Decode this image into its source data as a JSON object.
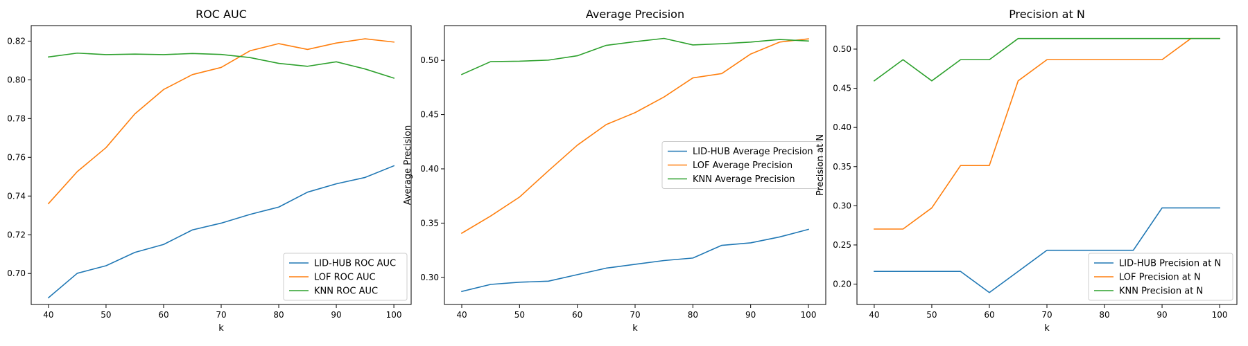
{
  "colors": {
    "LID-HUB": "#1f77b4",
    "LOF": "#ff7f0e",
    "KNN": "#2ca02c"
  },
  "chart_data": [
    {
      "type": "line",
      "title": "ROC AUC",
      "xlabel": "k",
      "ylabel": "ROC AUC",
      "x": [
        40,
        45,
        50,
        55,
        60,
        65,
        70,
        75,
        80,
        85,
        90,
        95,
        100
      ],
      "xlim": [
        37,
        103
      ],
      "ylim": [
        0.684,
        0.828
      ],
      "xticks": [
        40,
        50,
        60,
        70,
        80,
        90,
        100
      ],
      "yticks": [
        0.7,
        0.72,
        0.74,
        0.76,
        0.78,
        0.8,
        0.82
      ],
      "ytick_labels": [
        "0.70",
        "0.72",
        "0.74",
        "0.76",
        "0.78",
        "0.80",
        "0.82"
      ],
      "legend_position": "lower-right",
      "series": [
        {
          "name": "LID-HUB ROC AUC",
          "color": "#1f77b4",
          "values": [
            0.6875,
            0.7001,
            0.704,
            0.7109,
            0.715,
            0.7225,
            0.726,
            0.7305,
            0.7343,
            0.742,
            0.7463,
            0.7496,
            0.7556
          ]
        },
        {
          "name": "LOF ROC AUC",
          "color": "#ff7f0e",
          "values": [
            0.7361,
            0.7526,
            0.765,
            0.7824,
            0.795,
            0.8027,
            0.8064,
            0.815,
            0.8187,
            0.8157,
            0.819,
            0.8212,
            0.8195
          ]
        },
        {
          "name": "KNN ROC AUC",
          "color": "#2ca02c",
          "values": [
            0.8118,
            0.8138,
            0.813,
            0.8133,
            0.813,
            0.8136,
            0.8131,
            0.8115,
            0.8085,
            0.807,
            0.8093,
            0.8056,
            0.8009
          ]
        }
      ]
    },
    {
      "type": "line",
      "title": "Average Precision",
      "xlabel": "k",
      "ylabel": "Average Precision",
      "x": [
        40,
        45,
        50,
        55,
        60,
        65,
        70,
        75,
        80,
        85,
        90,
        95,
        100
      ],
      "xlim": [
        37,
        103
      ],
      "ylim": [
        0.275,
        0.532
      ],
      "xticks": [
        40,
        50,
        60,
        70,
        80,
        90,
        100
      ],
      "yticks": [
        0.3,
        0.35,
        0.4,
        0.45,
        0.5
      ],
      "ytick_labels": [
        "0.30",
        "0.35",
        "0.40",
        "0.45",
        "0.50"
      ],
      "legend_position": "center-right",
      "series": [
        {
          "name": "LID-HUB Average Precision",
          "color": "#1f77b4",
          "values": [
            0.287,
            0.2935,
            0.2955,
            0.2965,
            0.3025,
            0.3085,
            0.312,
            0.3155,
            0.3178,
            0.3295,
            0.3318,
            0.3372,
            0.3442
          ]
        },
        {
          "name": "LOF Average Precision",
          "color": "#ff7f0e",
          "values": [
            0.3407,
            0.3565,
            0.374,
            0.3982,
            0.4218,
            0.4408,
            0.4518,
            0.4662,
            0.4838,
            0.4878,
            0.5058,
            0.5168,
            0.5198
          ]
        },
        {
          "name": "KNN Average Precision",
          "color": "#2ca02c",
          "values": [
            0.487,
            0.4988,
            0.4992,
            0.5002,
            0.5042,
            0.5138,
            0.5172,
            0.5202,
            0.5142,
            0.5153,
            0.5168,
            0.5192,
            0.5178
          ]
        }
      ]
    },
    {
      "type": "line",
      "title": "Precision at N",
      "xlabel": "k",
      "ylabel": "Precision at N",
      "x": [
        40,
        45,
        50,
        55,
        60,
        65,
        70,
        75,
        80,
        85,
        90,
        95,
        100
      ],
      "xlim": [
        37,
        103
      ],
      "ylim": [
        0.174,
        0.53
      ],
      "xticks": [
        40,
        50,
        60,
        70,
        80,
        90,
        100
      ],
      "yticks": [
        0.2,
        0.25,
        0.3,
        0.35,
        0.4,
        0.45,
        0.5
      ],
      "ytick_labels": [
        "0.20",
        "0.25",
        "0.30",
        "0.35",
        "0.40",
        "0.45",
        "0.50"
      ],
      "legend_position": "lower-right",
      "series": [
        {
          "name": "LID-HUB Precision at N",
          "color": "#1f77b4",
          "values": [
            0.2162,
            0.2162,
            0.2162,
            0.2162,
            0.1892,
            0.2162,
            0.2432,
            0.2432,
            0.2432,
            0.2432,
            0.2973,
            0.2973,
            0.2973
          ]
        },
        {
          "name": "LOF Precision at N",
          "color": "#ff7f0e",
          "values": [
            0.2703,
            0.2703,
            0.2973,
            0.3514,
            0.3514,
            0.4595,
            0.4865,
            0.4865,
            0.4865,
            0.4865,
            0.4865,
            0.5135,
            0.5135
          ]
        },
        {
          "name": "KNN Precision at N",
          "color": "#2ca02c",
          "values": [
            0.4595,
            0.4865,
            0.4595,
            0.4865,
            0.4865,
            0.5135,
            0.5135,
            0.5135,
            0.5135,
            0.5135,
            0.5135,
            0.5135,
            0.5135
          ]
        }
      ]
    }
  ]
}
